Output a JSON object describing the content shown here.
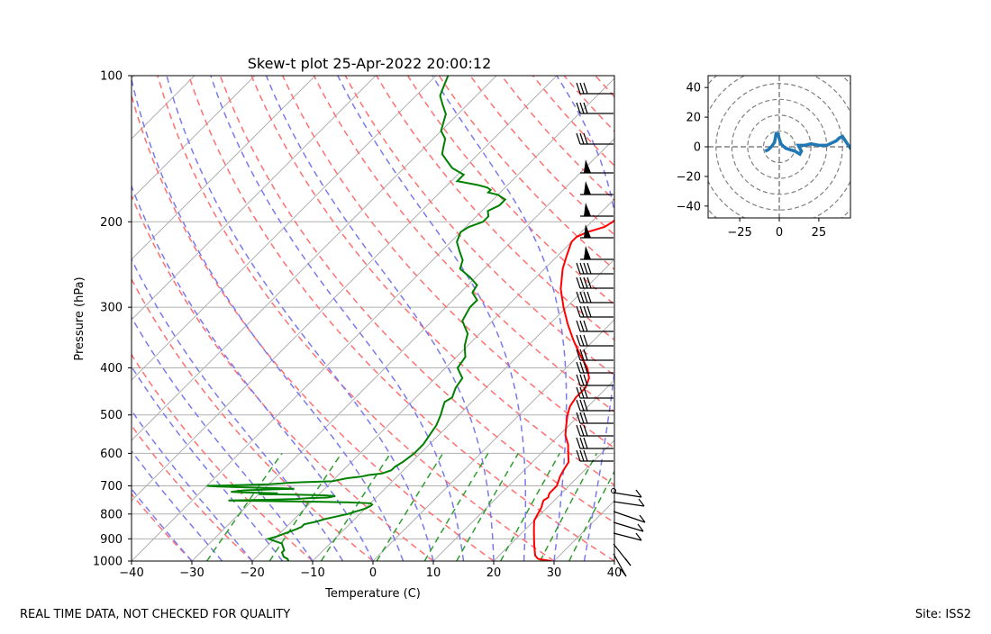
{
  "chart_data": [
    {
      "type": "line",
      "subtype": "skew-t",
      "title": "Skew-t plot 25-Apr-2022 20:00:12",
      "xlabel": "Temperature (C)",
      "ylabel": "Pressure (hPa)",
      "xlim": [
        -40,
        40
      ],
      "ylim": [
        1000,
        100
      ],
      "y_scale": "log",
      "x_ticks": [
        -40,
        -30,
        -20,
        -10,
        0,
        10,
        20,
        30,
        40
      ],
      "y_ticks": [
        100,
        200,
        300,
        400,
        500,
        600,
        700,
        800,
        900,
        1000
      ],
      "grid": true,
      "series": [
        {
          "color": "#ff0000",
          "pressure": [
            1000,
            990,
            975,
            950,
            925,
            900,
            875,
            850,
            825,
            800,
            775,
            760,
            750,
            740,
            725,
            700,
            685,
            670,
            650,
            625,
            600,
            575,
            550,
            525,
            500,
            480,
            460,
            440,
            420,
            400,
            375,
            350,
            325,
            300,
            275,
            250,
            235,
            220,
            215,
            210,
            205,
            200,
            190,
            180,
            175,
            170,
            160,
            150,
            140,
            130,
            120,
            110,
            105,
            100
          ],
          "values": [
            29.5,
            27,
            26,
            25,
            24,
            23,
            22,
            21,
            20,
            19.5,
            19,
            18.5,
            18.2,
            18.5,
            18,
            18,
            17.5,
            17,
            16.5,
            16,
            14.5,
            13,
            11,
            9.5,
            8,
            7,
            6.5,
            6.5,
            5.5,
            3.5,
            0,
            -3.5,
            -7,
            -10.5,
            -14,
            -17,
            -18.5,
            -20,
            -20,
            -19,
            -17,
            -16.5,
            -16.5,
            -16,
            -15,
            -15.5,
            -13.5,
            -12,
            -12,
            -10.5,
            -10.5,
            -9.5,
            -8,
            -6.5
          ]
        },
        {
          "color": "#008000",
          "pressure": [
            1000,
            990,
            980,
            970,
            960,
            950,
            940,
            930,
            920,
            910,
            900,
            890,
            875,
            860,
            850,
            840,
            830,
            820,
            810,
            800,
            790,
            780,
            770,
            765,
            760,
            757,
            755,
            753,
            750,
            748,
            745,
            742,
            740,
            735,
            732,
            730,
            728,
            725,
            722,
            720,
            715,
            712,
            710,
            708,
            705,
            702,
            700,
            698,
            695,
            692,
            690,
            688,
            685,
            680,
            675,
            670,
            665,
            660,
            650,
            640,
            625,
            600,
            575,
            550,
            525,
            500,
            480,
            470,
            460,
            450,
            440,
            420,
            400,
            380,
            360,
            340,
            320,
            300,
            290,
            280,
            270,
            260,
            250,
            240,
            230,
            220,
            210,
            205,
            200,
            195,
            190,
            185,
            180,
            178,
            176,
            174,
            172,
            170,
            168,
            165,
            160,
            155,
            150,
            145,
            140,
            135,
            130,
            125,
            120,
            115,
            110,
            105,
            100
          ],
          "values": [
            -14,
            -14.5,
            -15.5,
            -16,
            -16.5,
            -16.5,
            -17,
            -17.5,
            -18,
            -19.5,
            -21,
            -20,
            -19,
            -18,
            -17.5,
            -17.5,
            -16,
            -15,
            -13.5,
            -12,
            -11,
            -10,
            -9.5,
            -9.5,
            -10,
            -14,
            -18,
            -25,
            -34,
            -28,
            -23,
            -21,
            -18,
            -17,
            -19,
            -24,
            -30,
            -27,
            -33,
            -35,
            -33,
            -29,
            -25,
            -27,
            -33,
            -38,
            -40,
            -35,
            -30,
            -28,
            -27,
            -25,
            -20,
            -19,
            -18,
            -16,
            -15,
            -13,
            -12,
            -12,
            -11.5,
            -11,
            -11,
            -11.5,
            -12,
            -13,
            -14,
            -14.5,
            -14,
            -14.5,
            -15,
            -15.5,
            -18,
            -18.5,
            -20.5,
            -22,
            -25,
            -26,
            -26,
            -28,
            -28.5,
            -31,
            -34,
            -35,
            -37,
            -39,
            -40,
            -39.5,
            -38,
            -38,
            -39,
            -38,
            -38,
            -39,
            -40,
            -42,
            -42,
            -43,
            -45,
            -49,
            -49,
            -52,
            -54,
            -56,
            -57,
            -58,
            -60,
            -61,
            -62,
            -64,
            -66,
            -67,
            -68
          ]
        }
      ],
      "reference_lines": [
        "dry adiabats",
        "moist adiabats",
        "mixing ratio lines"
      ],
      "wind_barbs": true
    },
    {
      "type": "line",
      "subtype": "hodograph",
      "xlim": [
        -45,
        45
      ],
      "ylim": [
        -48,
        48
      ],
      "x_ticks": [
        -25,
        0,
        25
      ],
      "y_ticks": [
        -40,
        -20,
        0,
        20,
        40
      ],
      "rings": [
        10,
        20,
        30,
        40,
        50,
        60
      ],
      "series": [
        {
          "color": "#1f77b4",
          "u": [
            -9,
            -7,
            -5,
            -3,
            -2,
            -1,
            1,
            2,
            4,
            7,
            10,
            13,
            14,
            12,
            16,
            20,
            25,
            30,
            32,
            34,
            36,
            38,
            40,
            43,
            45,
            47
          ],
          "v": [
            -3,
            -2,
            0,
            3,
            9,
            9,
            2,
            1,
            -1,
            -2,
            -3,
            -5,
            -3,
            1,
            1,
            2,
            1,
            1,
            2,
            3,
            4,
            6,
            7,
            2,
            -1,
            0
          ]
        }
      ]
    }
  ],
  "footer": {
    "left": "REAL TIME DATA, NOT CHECKED FOR QUALITY",
    "right": "Site: ISS2"
  }
}
